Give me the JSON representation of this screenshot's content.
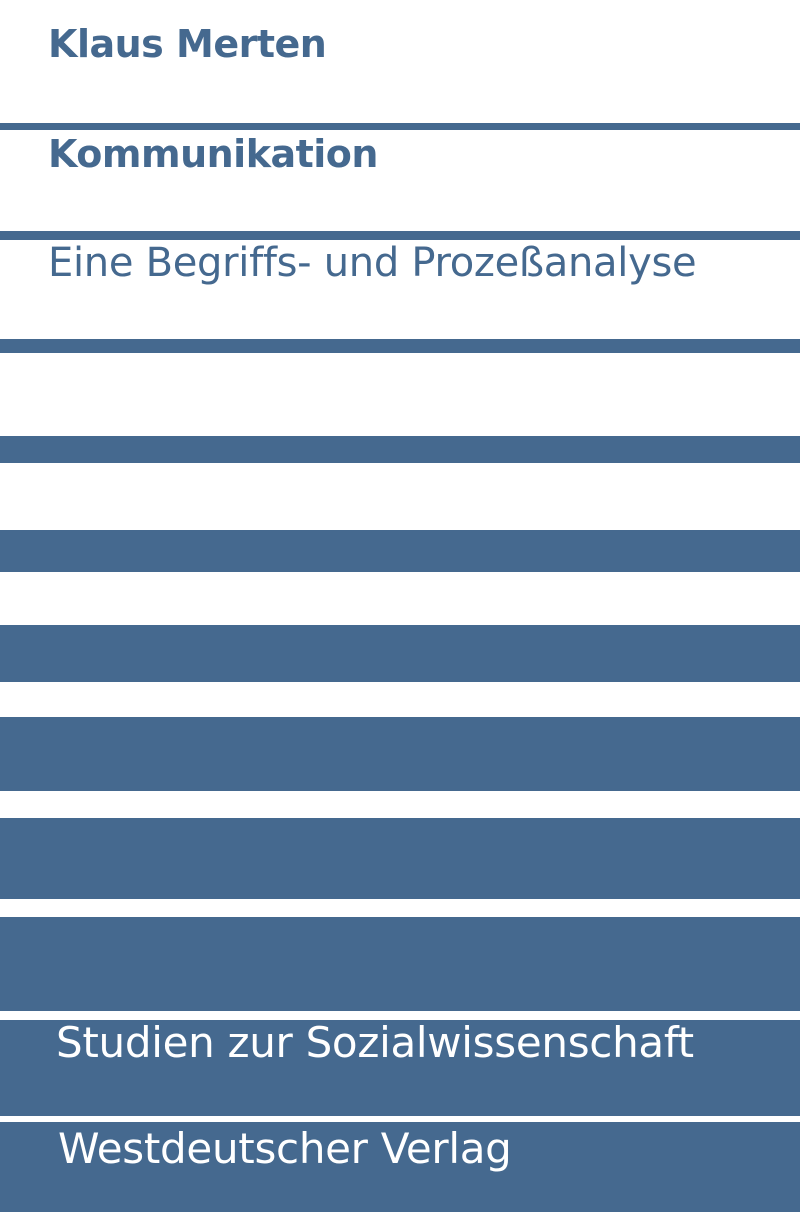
{
  "book": {
    "author": "Klaus Merten",
    "title": "Kommunikation",
    "subtitle": "Eine Begriffs- und Prozeßanalyse",
    "series": "Studien zur Sozialwissenschaft",
    "publisher": "Westdeutscher Verlag"
  },
  "colors": {
    "brand_blue": "#45698f",
    "background": "#ffffff",
    "reverse_text": "#ffffff"
  }
}
